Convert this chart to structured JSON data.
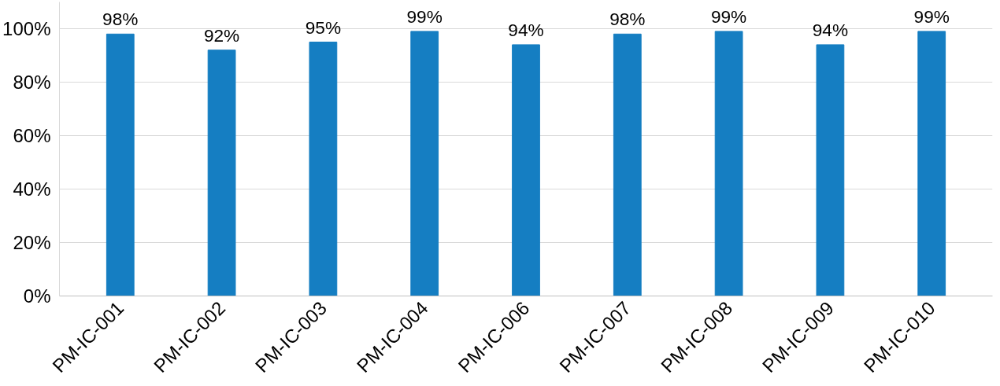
{
  "chart_data": {
    "type": "bar",
    "categories": [
      "PM-IC-001",
      "PM-IC-002",
      "PM-IC-003",
      "PM-IC-004",
      "PM-IC-006",
      "PM-IC-007",
      "PM-IC-008",
      "PM-IC-009",
      "PM-IC-010"
    ],
    "values": [
      98,
      92,
      95,
      99,
      94,
      98,
      99,
      94,
      99
    ],
    "value_labels": [
      "98%",
      "92%",
      "95%",
      "99%",
      "94%",
      "98%",
      "99%",
      "94%",
      "99%"
    ],
    "color": "#157ec2",
    "ylim": [
      0,
      110
    ],
    "yticks": [
      {
        "value": 0,
        "label": "0%"
      },
      {
        "value": 20,
        "label": "20%"
      },
      {
        "value": 40,
        "label": "40%"
      },
      {
        "value": 60,
        "label": "60%"
      },
      {
        "value": 80,
        "label": "80%"
      },
      {
        "value": 100,
        "label": "100%"
      }
    ],
    "grid": "y"
  }
}
